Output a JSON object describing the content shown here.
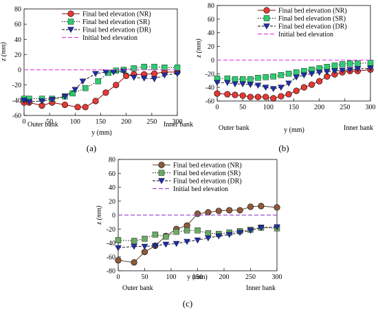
{
  "colors": {
    "NR_a": "#e53935",
    "NR_c": "#8d5a3b",
    "SR": "#2ecc71",
    "SR_c": "#6aaa64",
    "DR": "#1f2ea8",
    "initial": "#e040e0",
    "initial_c": "#9b4fd1"
  },
  "chart_data": [
    {
      "id": "a",
      "type": "line",
      "caption": "(a)",
      "xlabel": "y (mm)",
      "ylabel": "z (mm)",
      "xlim": [
        0,
        300
      ],
      "ylim": [
        -60,
        80
      ],
      "xticks": [
        0,
        50,
        100,
        150,
        200,
        250,
        300
      ],
      "yticks": [
        -60,
        -40,
        -20,
        0,
        20,
        40,
        60,
        80
      ],
      "bank_left": "Outer bank",
      "bank_right": "Inner bank",
      "legend_position": "top-right",
      "legend": [
        "Final bed elevation (NR)",
        "Final bed elevation (SR)",
        "Final bed elevation (DR)",
        "Initial bed elevation"
      ],
      "series": [
        {
          "name": "Final bed elevation (NR)",
          "x": [
            0,
            10,
            35,
            55,
            80,
            105,
            120,
            140,
            160,
            180,
            200,
            215,
            235,
            255,
            275,
            300
          ],
          "y": [
            -43,
            -43,
            -47,
            -43,
            -46,
            -49,
            -49,
            -41,
            -30,
            -20,
            -8,
            -6,
            -6,
            -5,
            -3,
            -3
          ]
        },
        {
          "name": "Final bed elevation (SR)",
          "x": [
            0,
            10,
            35,
            55,
            80,
            95,
            120,
            145,
            165,
            180,
            195,
            215,
            235,
            255,
            275,
            300
          ],
          "y": [
            -38,
            -38,
            -38,
            -38,
            -35,
            -31,
            -24,
            -15,
            -4,
            -1,
            0,
            2,
            4,
            4,
            3,
            3
          ]
        },
        {
          "name": "Final bed elevation (DR)",
          "x": [
            0,
            10,
            35,
            55,
            80,
            100,
            115,
            140,
            160,
            175,
            195,
            215,
            235,
            255,
            275,
            300
          ],
          "y": [
            -40,
            -42,
            -41,
            -39,
            -35,
            -26,
            -15,
            -5,
            -3,
            -3,
            -2,
            -10,
            -11,
            -12,
            -7,
            -5
          ]
        },
        {
          "name": "Initial bed elevation",
          "x": [
            0,
            300
          ],
          "y": [
            0,
            0
          ]
        }
      ]
    },
    {
      "id": "b",
      "type": "line",
      "caption": "(b)",
      "xlabel": "y (mm)",
      "ylabel": "z (mm)",
      "xlim": [
        0,
        300
      ],
      "ylim": [
        -60,
        80
      ],
      "xticks": [
        0,
        50,
        100,
        150,
        200,
        250,
        300
      ],
      "yticks": [
        -60,
        -40,
        -20,
        0,
        20,
        40,
        60,
        80
      ],
      "bank_left": "Outer bank",
      "bank_right": "Inner bank",
      "legend_position": "top-right",
      "legend": [
        "Final bed elevation (NR)",
        "Final bed elevation (SR)",
        "Final bed elevation (DR)",
        "Initial bed elevation"
      ],
      "series": [
        {
          "name": "Final bed elevation (NR)",
          "x": [
            0,
            20,
            35,
            50,
            65,
            80,
            95,
            110,
            125,
            140,
            155,
            170,
            185,
            200,
            215,
            230,
            245,
            260,
            275,
            300
          ],
          "y": [
            -49,
            -50,
            -51,
            -52,
            -54,
            -54,
            -54,
            -56,
            -53,
            -50,
            -45,
            -40,
            -36,
            -31,
            -24,
            -21,
            -18,
            -16,
            -16,
            -14
          ]
        },
        {
          "name": "Final bed elevation (SR)",
          "x": [
            0,
            20,
            35,
            50,
            65,
            80,
            95,
            110,
            125,
            140,
            155,
            170,
            185,
            200,
            215,
            230,
            245,
            260,
            275,
            300
          ],
          "y": [
            -27,
            -27,
            -28,
            -28,
            -28,
            -26,
            -25,
            -24,
            -22,
            -20,
            -18,
            -16,
            -14,
            -12,
            -10,
            -8,
            -6,
            -5,
            -5,
            -4
          ]
        },
        {
          "name": "Final bed elevation (DR)",
          "x": [
            0,
            20,
            35,
            50,
            65,
            80,
            95,
            110,
            125,
            140,
            155,
            170,
            185,
            200,
            215,
            230,
            245,
            260,
            275,
            300
          ],
          "y": [
            -33,
            -33,
            -35,
            -35,
            -36,
            -37,
            -40,
            -42,
            -40,
            -34,
            -25,
            -22,
            -20,
            -18,
            -17,
            -16,
            -15,
            -14,
            -13,
            -12
          ]
        },
        {
          "name": "Initial bed elevation",
          "x": [
            0,
            300
          ],
          "y": [
            0,
            0
          ]
        }
      ]
    },
    {
      "id": "c",
      "type": "line",
      "caption": "(c)",
      "xlabel": "y (mm)",
      "ylabel": "z (mm)",
      "xlim": [
        0,
        300
      ],
      "ylim": [
        -80,
        80
      ],
      "xticks": [
        0,
        50,
        100,
        150,
        200,
        250,
        300
      ],
      "yticks": [
        -80,
        -60,
        -40,
        -20,
        0,
        20,
        40,
        60,
        80
      ],
      "bank_left": "Outer bank",
      "bank_right": "Inner bank",
      "legend_position": "top-right",
      "legend": [
        "Final bed elevation (NR)",
        "Final bed elevation (SR)",
        "Final bed elevation (DR)",
        "Initial bed elevation"
      ],
      "series": [
        {
          "name": "Final bed elevation (NR)",
          "x": [
            0,
            30,
            50,
            70,
            90,
            110,
            130,
            150,
            170,
            190,
            210,
            230,
            250,
            270,
            300
          ],
          "y": [
            -65,
            -68,
            -53,
            -44,
            -30,
            -20,
            -15,
            2,
            4,
            6,
            7,
            7,
            12,
            13,
            11
          ]
        },
        {
          "name": "Final bed elevation (SR)",
          "x": [
            0,
            30,
            50,
            70,
            90,
            110,
            130,
            150,
            170,
            190,
            210,
            230,
            250,
            270,
            300
          ],
          "y": [
            -36,
            -37,
            -34,
            -28,
            -31,
            -24,
            -22,
            -22,
            -26,
            -27,
            -25,
            -23,
            -21,
            -18,
            -19
          ]
        },
        {
          "name": "Final bed elevation (DR)",
          "x": [
            0,
            30,
            50,
            70,
            90,
            110,
            130,
            150,
            170,
            190,
            210,
            230,
            250,
            270,
            300
          ],
          "y": [
            -47,
            -45,
            -45,
            -44,
            -42,
            -41,
            -38,
            -36,
            -33,
            -30,
            -28,
            -25,
            -22,
            -18,
            -17
          ]
        },
        {
          "name": "Initial bed elevation",
          "x": [
            0,
            300
          ],
          "y": [
            0,
            0
          ]
        }
      ]
    }
  ]
}
